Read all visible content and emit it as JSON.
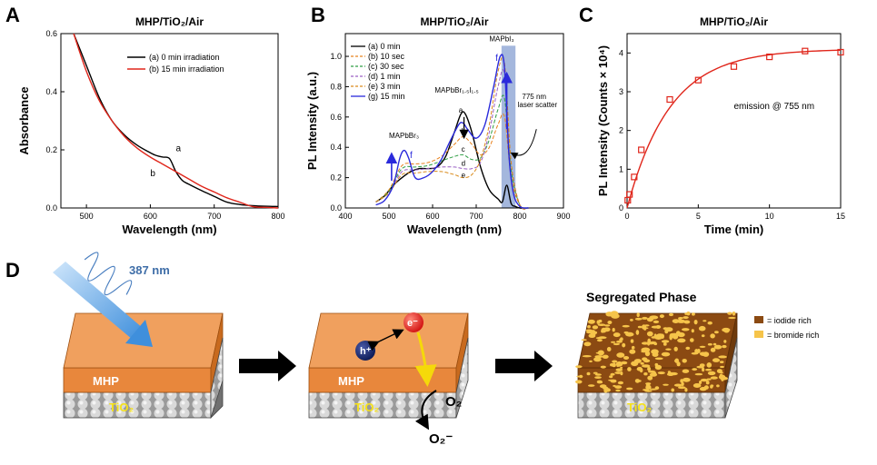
{
  "panel_labels": {
    "a": "A",
    "b": "B",
    "c": "C",
    "d": "D"
  },
  "colors": {
    "black": "#000000",
    "red": "#e0261b",
    "blue": "#2a2adb",
    "orange": "#e8821e",
    "green": "#2e9e44",
    "purple": "#9a5fc4",
    "gold": "#d98a1a",
    "blue_band": "#7e98cf"
  },
  "chart_data": [
    {
      "id": "A",
      "type": "line",
      "title": "MHP/TiO₂/Air",
      "xlabel": "Wavelength (nm)",
      "ylabel": "Absorbance",
      "xlim": [
        460,
        800
      ],
      "ylim": [
        0.0,
        0.6
      ],
      "xticks": [
        500,
        600,
        700,
        800
      ],
      "yticks": [
        "0.0",
        "0.2",
        "0.4",
        "0.6"
      ],
      "legend_position": "top-right",
      "series": [
        {
          "name": "(a) 0 min irradiation",
          "color": "#000000",
          "x": [
            480,
            500,
            520,
            540,
            560,
            580,
            600,
            610,
            620,
            630,
            640,
            650,
            660,
            680,
            700,
            720,
            740,
            760,
            780,
            800
          ],
          "y": [
            0.6,
            0.49,
            0.38,
            0.3,
            0.25,
            0.215,
            0.19,
            0.18,
            0.175,
            0.17,
            0.125,
            0.095,
            0.082,
            0.06,
            0.04,
            0.02,
            0.012,
            0.008,
            0.006,
            0.005
          ]
        },
        {
          "name": "(b) 15 min irradiation",
          "color": "#e0261b",
          "x": [
            480,
            500,
            520,
            540,
            560,
            580,
            600,
            620,
            640,
            660,
            680,
            700,
            720,
            740,
            760,
            780,
            800
          ],
          "y": [
            0.6,
            0.47,
            0.37,
            0.3,
            0.245,
            0.205,
            0.175,
            0.15,
            0.125,
            0.1,
            0.075,
            0.055,
            0.035,
            0.02,
            0.005,
            0.002,
            0.0
          ]
        }
      ],
      "annotations": [
        "a",
        "b"
      ]
    },
    {
      "id": "B",
      "type": "line",
      "title": "MHP/TiO₂/Air",
      "xlabel": "Wavelength (nm)",
      "ylabel": "PL Intensity (a.u.)",
      "xlim": [
        400,
        900
      ],
      "ylim": [
        0,
        1.15
      ],
      "xticks": [
        400,
        500,
        600,
        700,
        800,
        900
      ],
      "yticks": [
        "0.0",
        "0.2",
        "0.4",
        "0.6",
        "0.8",
        "1.0"
      ],
      "legend_position": "top-left",
      "highlight_band": [
        758,
        790
      ],
      "series": [
        {
          "name": "(a) 0 min",
          "color": "#000000",
          "dash": "solid",
          "x": [
            470,
            490,
            510,
            530,
            550,
            570,
            590,
            610,
            630,
            650,
            665,
            675,
            690,
            710,
            730,
            750,
            760,
            770,
            780,
            790,
            800,
            820
          ],
          "y": [
            0.04,
            0.08,
            0.15,
            0.2,
            0.24,
            0.26,
            0.26,
            0.27,
            0.34,
            0.5,
            0.62,
            0.62,
            0.5,
            0.27,
            0.12,
            0.06,
            0.04,
            0.15,
            0.03,
            0.01,
            0.0,
            0.0
          ]
        },
        {
          "name": "(b) 10 sec",
          "color": "#e8821e",
          "dash": "dash",
          "x": [
            470,
            500,
            530,
            560,
            590,
            620,
            650,
            670,
            690,
            710,
            730,
            750,
            765,
            780,
            800,
            820
          ],
          "y": [
            0.04,
            0.12,
            0.28,
            0.29,
            0.3,
            0.34,
            0.42,
            0.47,
            0.42,
            0.35,
            0.4,
            0.55,
            0.6,
            0.2,
            0.02,
            0.0
          ]
        },
        {
          "name": "(c) 30 sec",
          "color": "#2e9e44",
          "dash": "dash",
          "x": [
            470,
            500,
            530,
            560,
            590,
            620,
            650,
            670,
            690,
            710,
            730,
            750,
            765,
            780,
            800,
            820
          ],
          "y": [
            0.04,
            0.11,
            0.26,
            0.27,
            0.28,
            0.31,
            0.34,
            0.35,
            0.32,
            0.33,
            0.45,
            0.65,
            0.72,
            0.25,
            0.02,
            0.0
          ]
        },
        {
          "name": "(d) 1 min",
          "color": "#9a5fc4",
          "dash": "dash",
          "x": [
            470,
            500,
            530,
            560,
            590,
            620,
            650,
            670,
            690,
            710,
            730,
            750,
            765,
            780,
            800,
            820
          ],
          "y": [
            0.04,
            0.1,
            0.24,
            0.25,
            0.26,
            0.27,
            0.27,
            0.26,
            0.26,
            0.3,
            0.5,
            0.8,
            0.88,
            0.3,
            0.02,
            0.0
          ]
        },
        {
          "name": "(e) 3 min",
          "color": "#d98a1a",
          "dash": "dash",
          "x": [
            470,
            500,
            530,
            560,
            590,
            620,
            650,
            670,
            690,
            710,
            730,
            750,
            765,
            780,
            800,
            820
          ],
          "y": [
            0.04,
            0.1,
            0.22,
            0.23,
            0.24,
            0.24,
            0.22,
            0.2,
            0.22,
            0.32,
            0.55,
            0.9,
            0.95,
            0.3,
            0.02,
            0.0
          ]
        },
        {
          "name": "(g) 15 min",
          "color": "#2a2adb",
          "dash": "solid",
          "x": [
            470,
            490,
            510,
            525,
            535,
            545,
            560,
            580,
            600,
            620,
            640,
            660,
            670,
            680,
            700,
            720,
            740,
            755,
            765,
            775,
            785,
            800,
            820
          ],
          "y": [
            0.02,
            0.05,
            0.15,
            0.33,
            0.38,
            0.33,
            0.2,
            0.2,
            0.24,
            0.32,
            0.44,
            0.55,
            0.56,
            0.52,
            0.46,
            0.55,
            0.8,
            1.0,
            0.92,
            0.35,
            0.1,
            0.01,
            0.0
          ]
        }
      ],
      "annotations": [
        "MAPbBr₃",
        "MAPbBr₁.₅I₁.₅",
        "MAPbI₃",
        "a",
        "b",
        "c",
        "d",
        "e",
        "f",
        "f",
        "775 nm laser scatter"
      ]
    },
    {
      "id": "C",
      "type": "scatter",
      "title": "MHP/TiO₂/Air",
      "xlabel": "Time (min)",
      "ylabel": "PL Intensity (Counts × 10⁴)",
      "xlim": [
        0,
        15
      ],
      "ylim": [
        0,
        4.5
      ],
      "xticks": [
        0,
        5,
        10,
        15
      ],
      "yticks": [
        0,
        1,
        2,
        3,
        4
      ],
      "series": [
        {
          "name": "",
          "color": "#e0261b",
          "x": [
            0.05,
            0.17,
            0.5,
            1,
            3,
            5,
            7.5,
            10,
            12.5,
            15
          ],
          "y": [
            0.2,
            0.35,
            0.8,
            1.5,
            2.8,
            3.3,
            3.65,
            3.9,
            4.05,
            4.02
          ]
        }
      ],
      "fit": {
        "color": "#e0261b",
        "A": 4.1,
        "tau": 3.0
      },
      "annotation": "emission @ 755 nm"
    }
  ],
  "panel_d": {
    "excitation": "387 nm",
    "slab_label": "MHP",
    "substrate_label": "TiO₂",
    "hole": "h⁺",
    "electron": "e⁻",
    "oxygen": "O₂",
    "superoxide": "O₂⁻",
    "segregated_title": "Segregated Phase",
    "legend": [
      {
        "label": "= iodide rich",
        "color": "#8b4a12"
      },
      {
        "label": "= bromide rich",
        "color": "#f6c44a"
      }
    ]
  }
}
